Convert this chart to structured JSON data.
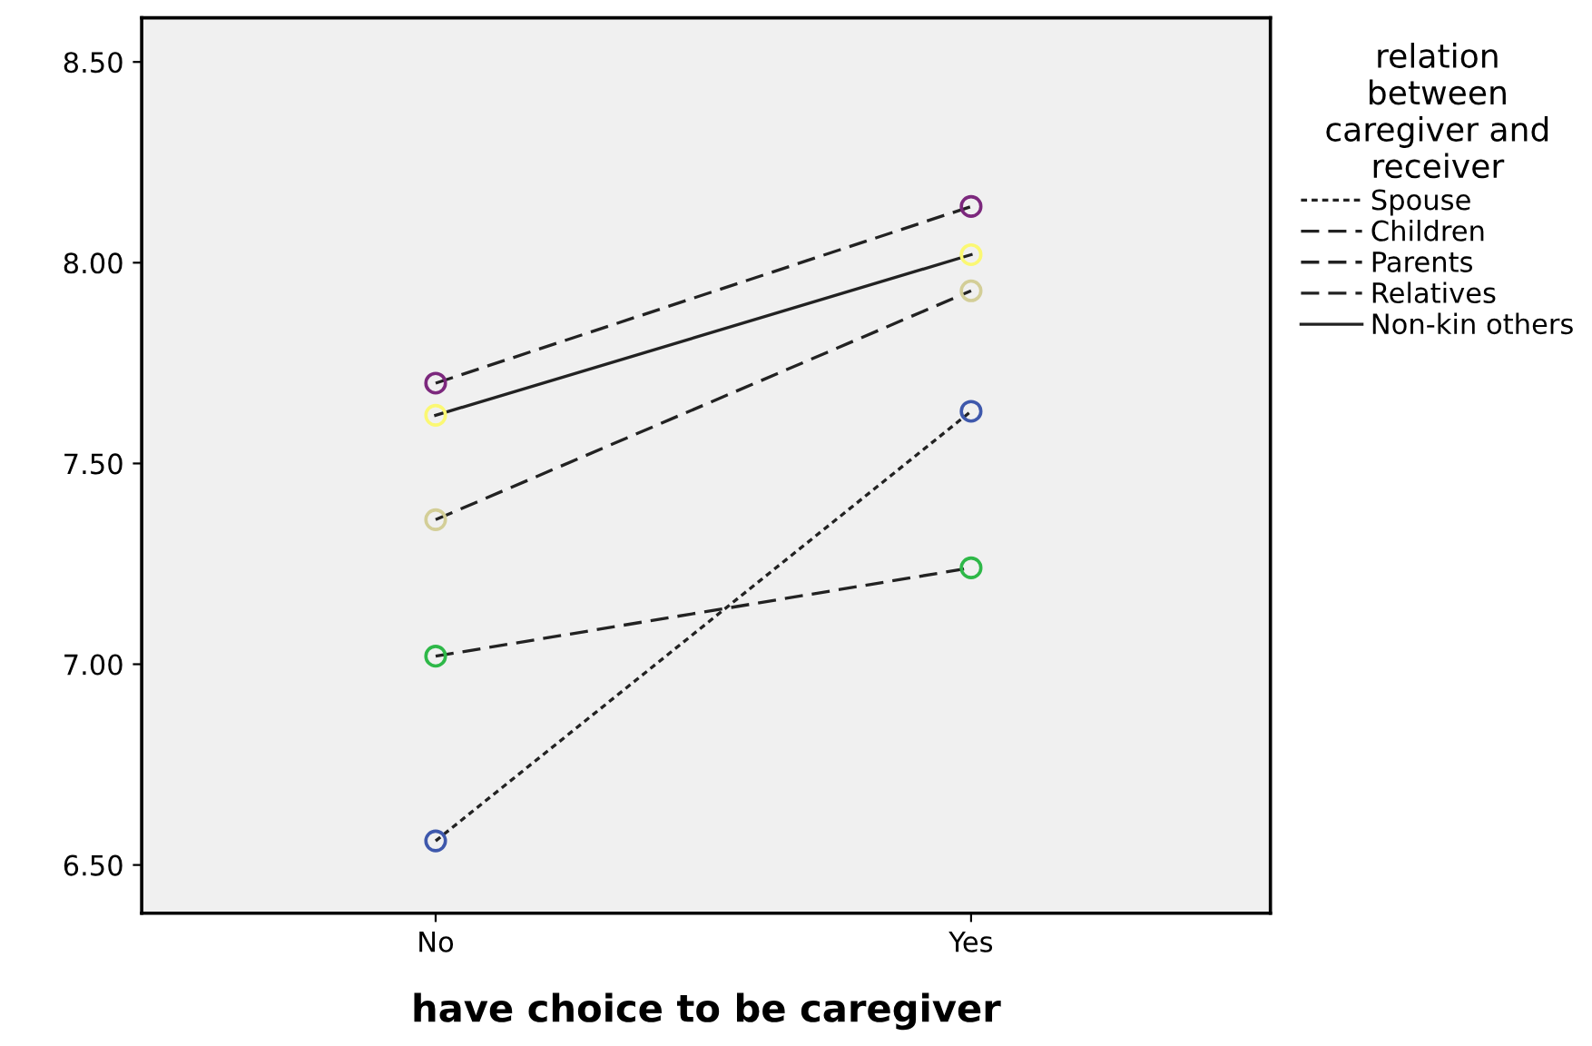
{
  "chart_data": {
    "type": "line",
    "xlabel": "have choice to be caregiver",
    "legend_title": "relation\nbetween\ncaregiver and\nreceiver",
    "categories": [
      "No",
      "Yes"
    ],
    "series": [
      {
        "name": "Spouse",
        "color": "#3e58ac",
        "line_style": "dotted",
        "values": [
          6.56,
          7.63
        ]
      },
      {
        "name": "Children",
        "color": "#2eb848",
        "line_style": "dashed",
        "values": [
          7.02,
          7.24
        ]
      },
      {
        "name": "Parents",
        "color": "#d3ce97",
        "line_style": "dashed",
        "values": [
          7.36,
          7.93
        ]
      },
      {
        "name": "Relatives",
        "color": "#7c287d",
        "line_style": "dashed",
        "values": [
          7.7,
          8.14
        ]
      },
      {
        "name": "Non-kin others",
        "color": "#fbf873",
        "line_style": "solid",
        "values": [
          7.62,
          8.02
        ]
      }
    ],
    "ylim": [
      6.38,
      8.61
    ],
    "yticks": [
      {
        "value": 6.5,
        "label": "6.50"
      },
      {
        "value": 7.0,
        "label": "7.00"
      },
      {
        "value": 7.5,
        "label": "7.50"
      },
      {
        "value": 8.0,
        "label": "8.00"
      },
      {
        "value": 8.5,
        "label": "8.50"
      }
    ],
    "marker": "circle",
    "legend": "right",
    "grid": false
  }
}
